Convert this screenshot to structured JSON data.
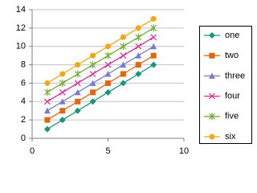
{
  "chart_data": {
    "type": "line",
    "x": [
      1,
      2,
      3,
      4,
      5,
      6,
      7,
      8
    ],
    "series": [
      {
        "name": "one",
        "color": "#17967a",
        "marker": "diamond",
        "values": [
          1,
          2,
          3,
          4,
          5,
          6,
          7,
          8
        ]
      },
      {
        "name": "two",
        "color": "#e0670e",
        "marker": "square",
        "values": [
          2,
          3,
          4,
          5,
          6,
          7,
          8,
          9
        ]
      },
      {
        "name": "three",
        "color": "#7a7cc8",
        "marker": "triangle",
        "values": [
          3,
          4,
          5,
          6,
          7,
          8,
          9,
          10
        ]
      },
      {
        "name": "four",
        "color": "#d82b9a",
        "marker": "x",
        "values": [
          4,
          5,
          6,
          7,
          8,
          9,
          10,
          11
        ]
      },
      {
        "name": "five",
        "color": "#76ab3a",
        "marker": "star",
        "values": [
          5,
          6,
          7,
          8,
          9,
          10,
          11,
          12
        ]
      },
      {
        "name": "six",
        "color": "#f0a816",
        "marker": "circle",
        "values": [
          6,
          7,
          8,
          9,
          10,
          11,
          12,
          13
        ]
      }
    ],
    "xlim": [
      0,
      10
    ],
    "xticks": [
      0,
      5,
      10
    ],
    "ylim": [
      0,
      14
    ],
    "yticks": [
      0,
      2,
      4,
      6,
      8,
      10,
      12,
      14
    ],
    "grid": true,
    "legend": "right"
  }
}
